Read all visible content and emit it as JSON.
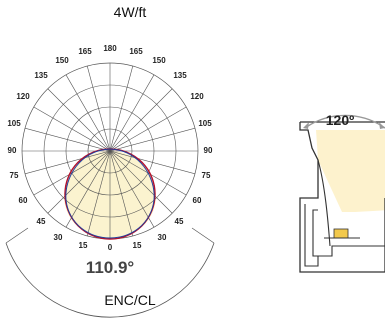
{
  "header": {
    "label": "4W/ft"
  },
  "footer": {
    "label": "ENC/CL"
  },
  "polar": {
    "angle_labels": [
      "0",
      "15",
      "15",
      "30",
      "30",
      "45",
      "45",
      "60",
      "60",
      "75",
      "75",
      "90",
      "90",
      "105",
      "105",
      "120",
      "120",
      "135",
      "135",
      "150",
      "150",
      "165",
      "165",
      "180"
    ],
    "beam_angle_label": "110.9°",
    "colors": {
      "grid": "#555555",
      "fill": "#fbf3cf",
      "curve_a": "#b5112b",
      "curve_b": "#1f3f9c"
    }
  },
  "profile": {
    "beam_angle_label": "120º",
    "colors": {
      "outline": "#333333",
      "glow": "#fdf1c8",
      "led": "#f2c94c",
      "arrow": "#999999"
    }
  }
}
